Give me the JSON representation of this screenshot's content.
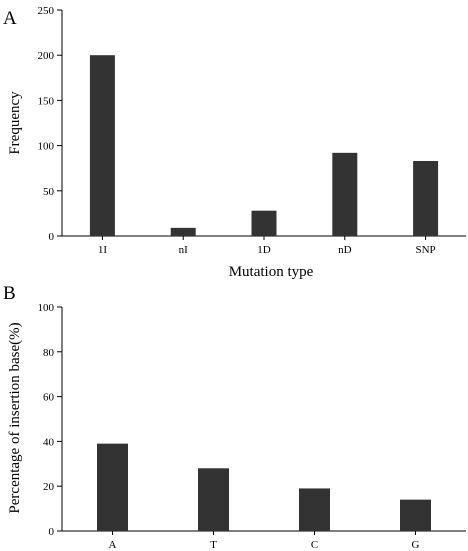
{
  "chart_data": [
    {
      "type": "bar",
      "panel_label": "A",
      "categories": [
        "1I",
        "nI",
        "1D",
        "nD",
        "SNP"
      ],
      "values": [
        200,
        9,
        28,
        92,
        83
      ],
      "xlabel": "Mutation type",
      "ylabel": "Frequency",
      "ylim": [
        0,
        250
      ],
      "yticks": [
        0,
        50,
        100,
        150,
        200,
        250
      ],
      "grid": false,
      "bar_color": "#333333"
    },
    {
      "type": "bar",
      "panel_label": "B",
      "categories": [
        "A",
        "T",
        "C",
        "G"
      ],
      "values": [
        39,
        28,
        19,
        14
      ],
      "xlabel": "",
      "ylabel": "Percentage of insertion base(%)",
      "ylim": [
        0,
        100
      ],
      "yticks": [
        0,
        20,
        40,
        60,
        80,
        100
      ],
      "grid": false,
      "bar_color": "#333333"
    }
  ]
}
